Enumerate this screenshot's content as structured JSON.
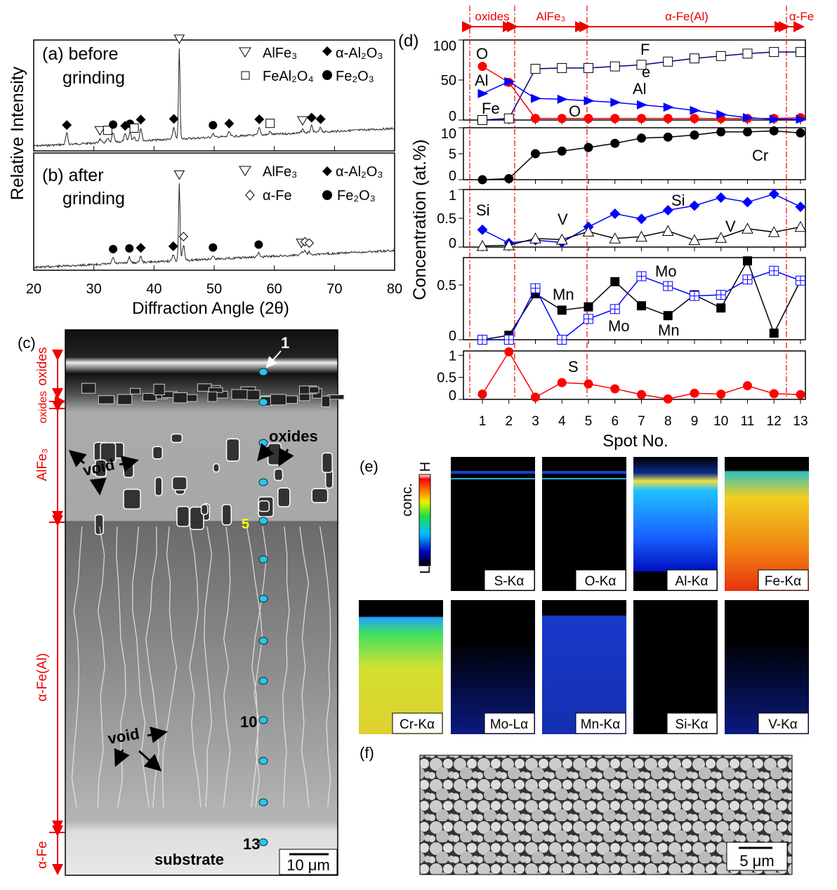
{
  "panels": {
    "a_label": "(a) before",
    "a_label2": "grinding",
    "b_label": "(b) after",
    "b_label2": "grinding",
    "c_label": "(c)",
    "d_label": "(d)",
    "e_label": "(e)",
    "f_label": "(f)"
  },
  "xrd_legend_a": [
    "AlFe₃",
    "α-Al₂O₃",
    "FeAl₂O₄",
    "Fe₂O₃"
  ],
  "xrd_legend_b": [
    "AlFe₃",
    "α-Al₂O₃",
    "α-Fe",
    "Fe₂O₃"
  ],
  "micrograph_c": {
    "zones": [
      "oxides",
      "oxides",
      "AlFe₃",
      "α-Fe(Al)",
      "α-Fe"
    ],
    "spot_labels": [
      "1",
      "5",
      "10",
      "13"
    ],
    "annotations": [
      "oxides",
      "void",
      "void",
      "substrate"
    ],
    "scale_bar": "10 μm"
  },
  "maps_e": {
    "colorbar_label": "conc.",
    "colorbar_high": "H",
    "colorbar_low": "L",
    "colors": {
      "high": "#ff0000",
      "low": "#000000"
    },
    "tiles": [
      "S-Kα",
      "O-Kα",
      "Al-Kα",
      "Fe-Kα",
      "Cr-Kα",
      "Mo-Lα",
      "Mn-Kα",
      "Si-Kα",
      "V-Kα"
    ]
  },
  "micrograph_f": {
    "scale_bar": "5 μm"
  },
  "chart_data": [
    {
      "type": "line",
      "title": "",
      "xlabel": "Diffraction Angle (2θ)",
      "ylabel": "Relative Intensity",
      "xlim": [
        20,
        80
      ],
      "xticks": [
        "20",
        "30",
        "40",
        "50",
        "60",
        "70",
        "80"
      ],
      "series": [
        {
          "name": "(a) before grinding",
          "peaks": [
            {
              "x": 25.5,
              "phase": "α-Al₂O₃"
            },
            {
              "x": 31.0,
              "phase": "AlFe₃"
            },
            {
              "x": 32.3,
              "phase": "FeAl₂O₄"
            },
            {
              "x": 33.2,
              "phase": "Fe₂O₃"
            },
            {
              "x": 35.2,
              "phase": "α-Al₂O₃"
            },
            {
              "x": 36.0,
              "phase": "Fe₂O₃"
            },
            {
              "x": 36.7,
              "phase": "FeAl₂O₄"
            },
            {
              "x": 37.8,
              "phase": "α-Al₂O₃"
            },
            {
              "x": 43.3,
              "phase": "α-Al₂O₃"
            },
            {
              "x": 44.2,
              "phase": "AlFe₃"
            },
            {
              "x": 49.8,
              "phase": "Fe₂O₃"
            },
            {
              "x": 52.5,
              "phase": "α-Al₂O₃"
            },
            {
              "x": 57.5,
              "phase": "α-Al₂O₃"
            },
            {
              "x": 59.3,
              "phase": "FeAl₂O₄"
            },
            {
              "x": 64.7,
              "phase": "AlFe₃"
            },
            {
              "x": 66.2,
              "phase": "α-Al₂O₃"
            },
            {
              "x": 67.7,
              "phase": "α-Al₂O₃"
            }
          ],
          "intensity": [
            12,
            4,
            4,
            10,
            8,
            10,
            5,
            14,
            13,
            100,
            4,
            5,
            8,
            3,
            4,
            7,
            5
          ]
        },
        {
          "name": "(b) after grinding",
          "peaks": [
            {
              "x": 33.2,
              "phase": "Fe₂O₃"
            },
            {
              "x": 35.9,
              "phase": "Fe₂O₃"
            },
            {
              "x": 37.8,
              "phase": "α-Al₂O₃"
            },
            {
              "x": 43.2,
              "phase": "α-Al₂O₃"
            },
            {
              "x": 44.2,
              "phase": "AlFe₃"
            },
            {
              "x": 44.9,
              "phase": "α-Fe"
            },
            {
              "x": 49.8,
              "phase": "Fe₂O₃"
            },
            {
              "x": 57.4,
              "phase": "Fe₂O₃"
            },
            {
              "x": 64.5,
              "phase": "AlFe₃"
            },
            {
              "x": 65.1,
              "phase": "α-Fe"
            },
            {
              "x": 65.8,
              "phase": "α-Fe"
            }
          ],
          "intensity": [
            8,
            8,
            8,
            8,
            100,
            20,
            4,
            5,
            4,
            6,
            4
          ]
        }
      ]
    },
    {
      "type": "line",
      "xlabel": "Spot No.",
      "ylabel": "Concentration (at.%)",
      "x": [
        1,
        2,
        3,
        4,
        5,
        6,
        7,
        8,
        9,
        10,
        11,
        12,
        13
      ],
      "xticks": [
        "1",
        "2",
        "3",
        "4",
        "5",
        "6",
        "7",
        "8",
        "9",
        "10",
        "11",
        "12",
        "13"
      ],
      "zone_labels": [
        "oxides",
        "AlFe₃",
        "α-Fe(Al)",
        "α-Fe"
      ],
      "zone_boundaries": [
        2.5,
        5,
        12.5
      ],
      "subplots": [
        {
          "ylim": [
            0,
            100
          ],
          "yticks": [
            "0",
            "50",
            "100"
          ],
          "series": [
            {
              "name": "Fe",
              "labels": [
                "F",
                "e",
                "Fe"
              ],
              "color": "#000080",
              "marker": "open-square",
              "values": [
                0,
                2,
                64,
                65,
                65,
                67,
                69,
                73,
                77,
                80,
                83,
                85,
                85
              ]
            },
            {
              "name": "O",
              "labels": [
                "O",
                "O"
              ],
              "color": "#ff0000",
              "marker": "circle",
              "values": [
                67,
                47,
                2,
                2,
                2,
                2,
                2,
                2,
                2,
                2,
                2,
                2,
                3
              ]
            },
            {
              "name": "Al",
              "labels": [
                "Al",
                "Al"
              ],
              "color": "#0000ff",
              "marker": "triangle-right",
              "values": [
                33,
                48,
                27,
                26,
                24,
                22,
                19,
                16,
                12,
                7,
                3,
                1,
                1
              ]
            }
          ]
        },
        {
          "ylim": [
            0,
            10
          ],
          "yticks": [
            "0",
            "5",
            "10"
          ],
          "series": [
            {
              "name": "Cr",
              "labels": [
                "Cr"
              ],
              "color": "#000000",
              "marker": "circle",
              "values": [
                0,
                0.2,
                5,
                5.5,
                6.2,
                7,
                8,
                8.2,
                8.6,
                9.2,
                9.2,
                9.4,
                9
              ]
            }
          ]
        },
        {
          "ylim": [
            0,
            1
          ],
          "yticks": [
            "0",
            "0.5",
            "1"
          ],
          "series": [
            {
              "name": "Si",
              "labels": [
                "Si",
                "Si"
              ],
              "color": "#0000ff",
              "marker": "diamond",
              "values": [
                0.3,
                0.07,
                0.12,
                0.08,
                0.35,
                0.58,
                0.49,
                0.64,
                0.72,
                0.86,
                0.78,
                0.92,
                0.7
              ]
            },
            {
              "name": "V",
              "labels": [
                "V",
                "V"
              ],
              "color": "#000000",
              "marker": "open-triangle",
              "values": [
                0.02,
                0.03,
                0.15,
                0.13,
                0.27,
                0.15,
                0.18,
                0.28,
                0.12,
                0.16,
                0.32,
                0.26,
                0.35
              ]
            }
          ]
        },
        {
          "ylim": [
            0,
            0.75
          ],
          "yticks": [
            "0",
            "0.5"
          ],
          "series": [
            {
              "name": "Mn",
              "labels": [
                "Mn",
                "Mn"
              ],
              "color": "#000000",
              "marker": "square",
              "values": [
                0,
                0.04,
                0.42,
                0.27,
                0.3,
                0.53,
                0.31,
                0.22,
                0.41,
                0.29,
                0.72,
                0.06,
                0.54
              ]
            },
            {
              "name": "Mo",
              "labels": [
                "Mo",
                "Mo"
              ],
              "color": "#0000ff",
              "marker": "open-square-cross",
              "values": [
                0,
                0,
                0.47,
                0,
                0.19,
                0.28,
                0.58,
                0.49,
                0.4,
                0.41,
                0.55,
                0.63,
                0.54
              ]
            }
          ]
        },
        {
          "ylim": [
            0,
            1.1
          ],
          "yticks": [
            "0",
            "0.5",
            "1"
          ],
          "series": [
            {
              "name": "S",
              "labels": [
                "S"
              ],
              "color": "#ff0000",
              "marker": "circle",
              "values": [
                0.12,
                1.08,
                0.05,
                0.38,
                0.35,
                0.24,
                0.11,
                0.01,
                0.14,
                0.12,
                0.31,
                0.13,
                0.11
              ]
            }
          ]
        }
      ]
    }
  ]
}
